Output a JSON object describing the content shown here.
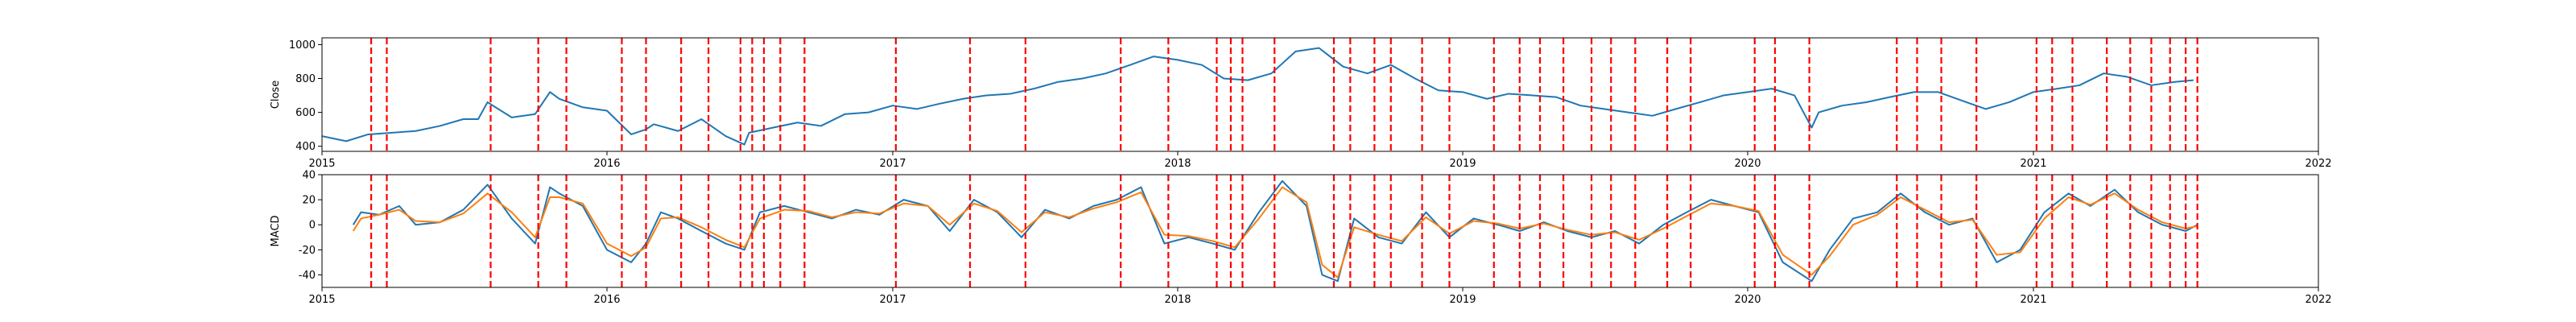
{
  "chart_data": [
    {
      "type": "line",
      "ylabel": "Close",
      "x_range": [
        "2015-01-01",
        "2022-01-01"
      ],
      "x_ticks": [
        "2015",
        "2016",
        "2017",
        "2018",
        "2019",
        "2020",
        "2021",
        "2022"
      ],
      "ylim": [
        370,
        1040
      ],
      "y_ticks": [
        400,
        600,
        800,
        1000
      ],
      "grid": false,
      "series": [
        {
          "color": "#1f77b4",
          "x": [
            "2015-01-01",
            "2015-02-01",
            "2015-03-01",
            "2015-04-01",
            "2015-05-01",
            "2015-06-01",
            "2015-07-01",
            "2015-07-20",
            "2015-08-01",
            "2015-09-01",
            "2015-10-01",
            "2015-10-20",
            "2015-11-01",
            "2015-12-01",
            "2016-01-01",
            "2016-02-01",
            "2016-02-20",
            "2016-03-01",
            "2016-04-01",
            "2016-05-01",
            "2016-06-01",
            "2016-06-25",
            "2016-07-01",
            "2016-08-01",
            "2016-09-01",
            "2016-10-01",
            "2016-11-01",
            "2016-12-01",
            "2017-01-01",
            "2017-02-01",
            "2017-03-01",
            "2017-04-01",
            "2017-05-01",
            "2017-06-01",
            "2017-07-01",
            "2017-08-01",
            "2017-09-01",
            "2017-10-01",
            "2017-11-01",
            "2017-12-01",
            "2018-01-01",
            "2018-02-01",
            "2018-03-01",
            "2018-04-01",
            "2018-05-01",
            "2018-06-01",
            "2018-07-01",
            "2018-07-15",
            "2018-08-01",
            "2018-09-01",
            "2018-10-01",
            "2018-11-01",
            "2018-12-01",
            "2019-01-01",
            "2019-02-01",
            "2019-03-01",
            "2019-04-01",
            "2019-05-01",
            "2019-06-01",
            "2019-07-01",
            "2019-08-01",
            "2019-09-01",
            "2019-10-01",
            "2019-11-01",
            "2019-12-01",
            "2020-01-01",
            "2020-02-01",
            "2020-03-01",
            "2020-03-23",
            "2020-04-01",
            "2020-05-01",
            "2020-06-01",
            "2020-07-01",
            "2020-08-01",
            "2020-09-01",
            "2020-10-01",
            "2020-11-01",
            "2020-12-01",
            "2021-01-01",
            "2021-02-01",
            "2021-03-01",
            "2021-04-01",
            "2021-05-01",
            "2021-06-01",
            "2021-07-01",
            "2021-07-25"
          ],
          "values": [
            460,
            430,
            470,
            480,
            490,
            520,
            560,
            560,
            660,
            570,
            590,
            720,
            680,
            630,
            610,
            470,
            500,
            530,
            490,
            560,
            460,
            410,
            480,
            510,
            540,
            520,
            590,
            600,
            640,
            620,
            650,
            680,
            700,
            710,
            740,
            780,
            800,
            830,
            880,
            930,
            910,
            880,
            800,
            790,
            830,
            960,
            980,
            930,
            870,
            830,
            880,
            800,
            730,
            720,
            680,
            710,
            700,
            690,
            640,
            620,
            600,
            580,
            620,
            660,
            700,
            720,
            740,
            700,
            510,
            600,
            640,
            660,
            690,
            720,
            720,
            670,
            620,
            660,
            720,
            740,
            760,
            830,
            810,
            760,
            780,
            790
          ]
        }
      ],
      "vlines": [
        "2015-03-05",
        "2015-03-25",
        "2015-08-05",
        "2015-10-05",
        "2015-11-10",
        "2016-01-20",
        "2016-02-20",
        "2016-04-05",
        "2016-05-10",
        "2016-06-20",
        "2016-07-05",
        "2016-07-20",
        "2016-08-10",
        "2016-09-10",
        "2017-01-05",
        "2017-04-10",
        "2017-06-20",
        "2017-10-20",
        "2017-12-20",
        "2018-02-20",
        "2018-03-10",
        "2018-03-25",
        "2018-05-05",
        "2018-07-20",
        "2018-08-10",
        "2018-09-10",
        "2018-10-01",
        "2018-11-10",
        "2018-12-15",
        "2019-02-10",
        "2019-03-15",
        "2019-04-10",
        "2019-05-10",
        "2019-06-15",
        "2019-07-10",
        "2019-08-10",
        "2019-09-20",
        "2019-10-20",
        "2020-01-10",
        "2020-02-05",
        "2020-03-20",
        "2020-07-10",
        "2020-08-05",
        "2020-09-05",
        "2020-10-20",
        "2021-01-05",
        "2021-01-25",
        "2021-02-20",
        "2021-04-05",
        "2021-05-05",
        "2021-06-01",
        "2021-06-25",
        "2021-07-15",
        "2021-07-30"
      ]
    },
    {
      "type": "line",
      "ylabel": "MACD",
      "x_range": [
        "2015-01-01",
        "2022-01-01"
      ],
      "x_ticks": [
        "2015",
        "2016",
        "2017",
        "2018",
        "2019",
        "2020",
        "2021",
        "2022"
      ],
      "ylim": [
        -50,
        40
      ],
      "y_ticks": [
        -40,
        -20,
        0,
        20,
        40
      ],
      "grid": false,
      "series": [
        {
          "color": "#1f77b4",
          "x": [
            "2015-02-10",
            "2015-02-20",
            "2015-03-15",
            "2015-04-10",
            "2015-05-01",
            "2015-06-01",
            "2015-07-01",
            "2015-08-01",
            "2015-09-01",
            "2015-10-01",
            "2015-10-20",
            "2015-11-01",
            "2015-12-01",
            "2016-01-01",
            "2016-02-01",
            "2016-02-20",
            "2016-03-10",
            "2016-04-01",
            "2016-05-01",
            "2016-06-01",
            "2016-06-25",
            "2016-07-15",
            "2016-08-15",
            "2016-09-15",
            "2016-10-15",
            "2016-11-15",
            "2016-12-15",
            "2017-01-15",
            "2017-02-15",
            "2017-03-15",
            "2017-04-15",
            "2017-05-15",
            "2017-06-15",
            "2017-07-15",
            "2017-08-15",
            "2017-09-15",
            "2017-10-15",
            "2017-11-15",
            "2017-12-15",
            "2018-01-15",
            "2018-02-15",
            "2018-03-15",
            "2018-04-15",
            "2018-05-15",
            "2018-06-15",
            "2018-07-05",
            "2018-07-25",
            "2018-08-15",
            "2018-09-15",
            "2018-10-15",
            "2018-11-15",
            "2018-12-15",
            "2019-01-15",
            "2019-02-15",
            "2019-03-15",
            "2019-04-15",
            "2019-05-15",
            "2019-06-15",
            "2019-07-15",
            "2019-08-15",
            "2019-09-15",
            "2019-10-15",
            "2019-11-15",
            "2019-12-15",
            "2020-01-15",
            "2020-02-15",
            "2020-03-23",
            "2020-04-15",
            "2020-05-15",
            "2020-06-15",
            "2020-07-15",
            "2020-08-15",
            "2020-09-15",
            "2020-10-15",
            "2020-11-15",
            "2020-12-15",
            "2021-01-15",
            "2021-02-15",
            "2021-03-15",
            "2021-04-15",
            "2021-05-15",
            "2021-06-15",
            "2021-07-15",
            "2021-07-30"
          ],
          "values": [
            0,
            10,
            8,
            15,
            0,
            2,
            12,
            32,
            5,
            -15,
            30,
            25,
            15,
            -20,
            -30,
            -15,
            10,
            5,
            -5,
            -15,
            -20,
            10,
            15,
            10,
            5,
            12,
            8,
            20,
            15,
            -5,
            20,
            10,
            -10,
            12,
            5,
            15,
            20,
            30,
            -15,
            -10,
            -15,
            -20,
            10,
            35,
            15,
            -40,
            -45,
            5,
            -10,
            -15,
            10,
            -10,
            5,
            0,
            -5,
            2,
            -5,
            -10,
            -5,
            -15,
            0,
            10,
            20,
            15,
            10,
            -30,
            -45,
            -20,
            5,
            10,
            25,
            10,
            0,
            5,
            -30,
            -20,
            10,
            25,
            15,
            28,
            10,
            0,
            -5,
            0
          ]
        },
        {
          "color": "#ff7f0e",
          "x": [
            "2015-02-10",
            "2015-02-20",
            "2015-03-15",
            "2015-04-10",
            "2015-05-01",
            "2015-06-01",
            "2015-07-01",
            "2015-08-01",
            "2015-09-01",
            "2015-10-01",
            "2015-10-20",
            "2015-11-01",
            "2015-12-01",
            "2016-01-01",
            "2016-02-01",
            "2016-02-20",
            "2016-03-10",
            "2016-04-01",
            "2016-05-01",
            "2016-06-01",
            "2016-06-25",
            "2016-07-15",
            "2016-08-15",
            "2016-09-15",
            "2016-10-15",
            "2016-11-15",
            "2016-12-15",
            "2017-01-15",
            "2017-02-15",
            "2017-03-15",
            "2017-04-15",
            "2017-05-15",
            "2017-06-15",
            "2017-07-15",
            "2017-08-15",
            "2017-09-15",
            "2017-10-15",
            "2017-11-15",
            "2017-12-15",
            "2018-01-15",
            "2018-02-15",
            "2018-03-15",
            "2018-04-15",
            "2018-05-15",
            "2018-06-15",
            "2018-07-05",
            "2018-07-25",
            "2018-08-15",
            "2018-09-15",
            "2018-10-15",
            "2018-11-15",
            "2018-12-15",
            "2019-01-15",
            "2019-02-15",
            "2019-03-15",
            "2019-04-15",
            "2019-05-15",
            "2019-06-15",
            "2019-07-15",
            "2019-08-15",
            "2019-09-15",
            "2019-10-15",
            "2019-11-15",
            "2019-12-15",
            "2020-01-15",
            "2020-02-15",
            "2020-03-23",
            "2020-04-15",
            "2020-05-15",
            "2020-06-15",
            "2020-07-15",
            "2020-08-15",
            "2020-09-15",
            "2020-10-15",
            "2020-11-15",
            "2020-12-15",
            "2021-01-15",
            "2021-02-15",
            "2021-03-15",
            "2021-04-15",
            "2021-05-15",
            "2021-06-15",
            "2021-07-15",
            "2021-07-30"
          ],
          "values": [
            -5,
            5,
            8,
            12,
            3,
            2,
            9,
            25,
            10,
            -10,
            22,
            22,
            17,
            -15,
            -25,
            -18,
            5,
            6,
            -2,
            -12,
            -18,
            5,
            12,
            11,
            6,
            10,
            9,
            17,
            15,
            0,
            17,
            11,
            -6,
            10,
            6,
            13,
            18,
            26,
            -8,
            -9,
            -13,
            -18,
            5,
            30,
            18,
            -32,
            -42,
            -2,
            -8,
            -13,
            6,
            -7,
            3,
            1,
            -3,
            1,
            -4,
            -8,
            -6,
            -12,
            -3,
            7,
            17,
            15,
            11,
            -24,
            -40,
            -25,
            0,
            8,
            22,
            12,
            2,
            4,
            -24,
            -22,
            5,
            22,
            16,
            25,
            12,
            2,
            -3,
            -1
          ]
        }
      ],
      "vlines": [
        "2015-03-05",
        "2015-03-25",
        "2015-08-05",
        "2015-10-05",
        "2015-11-10",
        "2016-01-20",
        "2016-02-20",
        "2016-04-05",
        "2016-05-10",
        "2016-06-20",
        "2016-07-05",
        "2016-07-20",
        "2016-08-10",
        "2016-09-10",
        "2017-01-05",
        "2017-04-10",
        "2017-06-20",
        "2017-10-20",
        "2017-12-20",
        "2018-02-20",
        "2018-03-10",
        "2018-03-25",
        "2018-05-05",
        "2018-07-20",
        "2018-08-10",
        "2018-09-10",
        "2018-10-01",
        "2018-11-10",
        "2018-12-15",
        "2019-02-10",
        "2019-03-15",
        "2019-04-10",
        "2019-05-10",
        "2019-06-15",
        "2019-07-10",
        "2019-08-10",
        "2019-09-20",
        "2019-10-20",
        "2020-01-10",
        "2020-02-05",
        "2020-03-20",
        "2020-07-10",
        "2020-08-05",
        "2020-09-05",
        "2020-10-20",
        "2021-01-05",
        "2021-01-25",
        "2021-02-20",
        "2021-04-05",
        "2021-05-05",
        "2021-06-01",
        "2021-06-25",
        "2021-07-15",
        "2021-07-30"
      ]
    }
  ],
  "colors": {
    "vline": "#ff0000",
    "axes": "#000000"
  }
}
